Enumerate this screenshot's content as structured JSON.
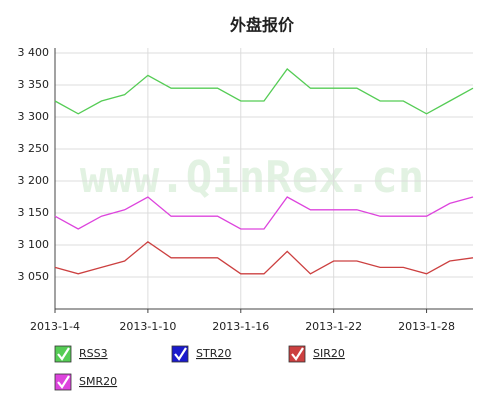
{
  "chart_data": {
    "type": "line",
    "title": "外盘报价",
    "watermark": "www.QinRex.cn",
    "categories": [
      "2013-1-4",
      null,
      null,
      null,
      "2013-1-10",
      null,
      null,
      null,
      "2013-1-16",
      null,
      null,
      null,
      "2013-1-22",
      null,
      null,
      null,
      "2013-1-28",
      null,
      null
    ],
    "series": [
      {
        "name": "RSS3",
        "color": "#55cc55",
        "values": [
          3325,
          3305,
          3325,
          3335,
          3365,
          3345,
          3345,
          3345,
          3325,
          3325,
          3375,
          3345,
          3345,
          3345,
          3325,
          3325,
          3305,
          3325,
          3345
        ]
      },
      {
        "name": "STR20",
        "color": "#1a1acc",
        "values": [
          null,
          null,
          null,
          null,
          null,
          null,
          null,
          null,
          null,
          null,
          null,
          null,
          null,
          null,
          null,
          null,
          null,
          null,
          null
        ]
      },
      {
        "name": "SIR20",
        "color": "#cc4040",
        "values": [
          3065,
          3055,
          3065,
          3075,
          3105,
          3080,
          3080,
          3080,
          3055,
          3055,
          3090,
          3055,
          3075,
          3075,
          3065,
          3065,
          3055,
          3075,
          3080
        ]
      },
      {
        "name": "SMR20",
        "color": "#dd44dd",
        "values": [
          3145,
          3125,
          3145,
          3155,
          3175,
          3145,
          3145,
          3145,
          3125,
          3125,
          3175,
          3155,
          3155,
          3155,
          3145,
          3145,
          3145,
          3165,
          3175
        ]
      }
    ],
    "ylim": [
      3000,
      3400
    ],
    "yticks": [
      {
        "value": 3050,
        "label": "3 050"
      },
      {
        "value": 3100,
        "label": "3 100"
      },
      {
        "value": 3150,
        "label": "3 150"
      },
      {
        "value": 3200,
        "label": "3 200"
      },
      {
        "value": 3250,
        "label": "3 250"
      },
      {
        "value": 3300,
        "label": "3 300"
      },
      {
        "value": 3350,
        "label": "3 350"
      },
      {
        "value": 3400,
        "label": "3 400"
      }
    ],
    "grid": true
  }
}
